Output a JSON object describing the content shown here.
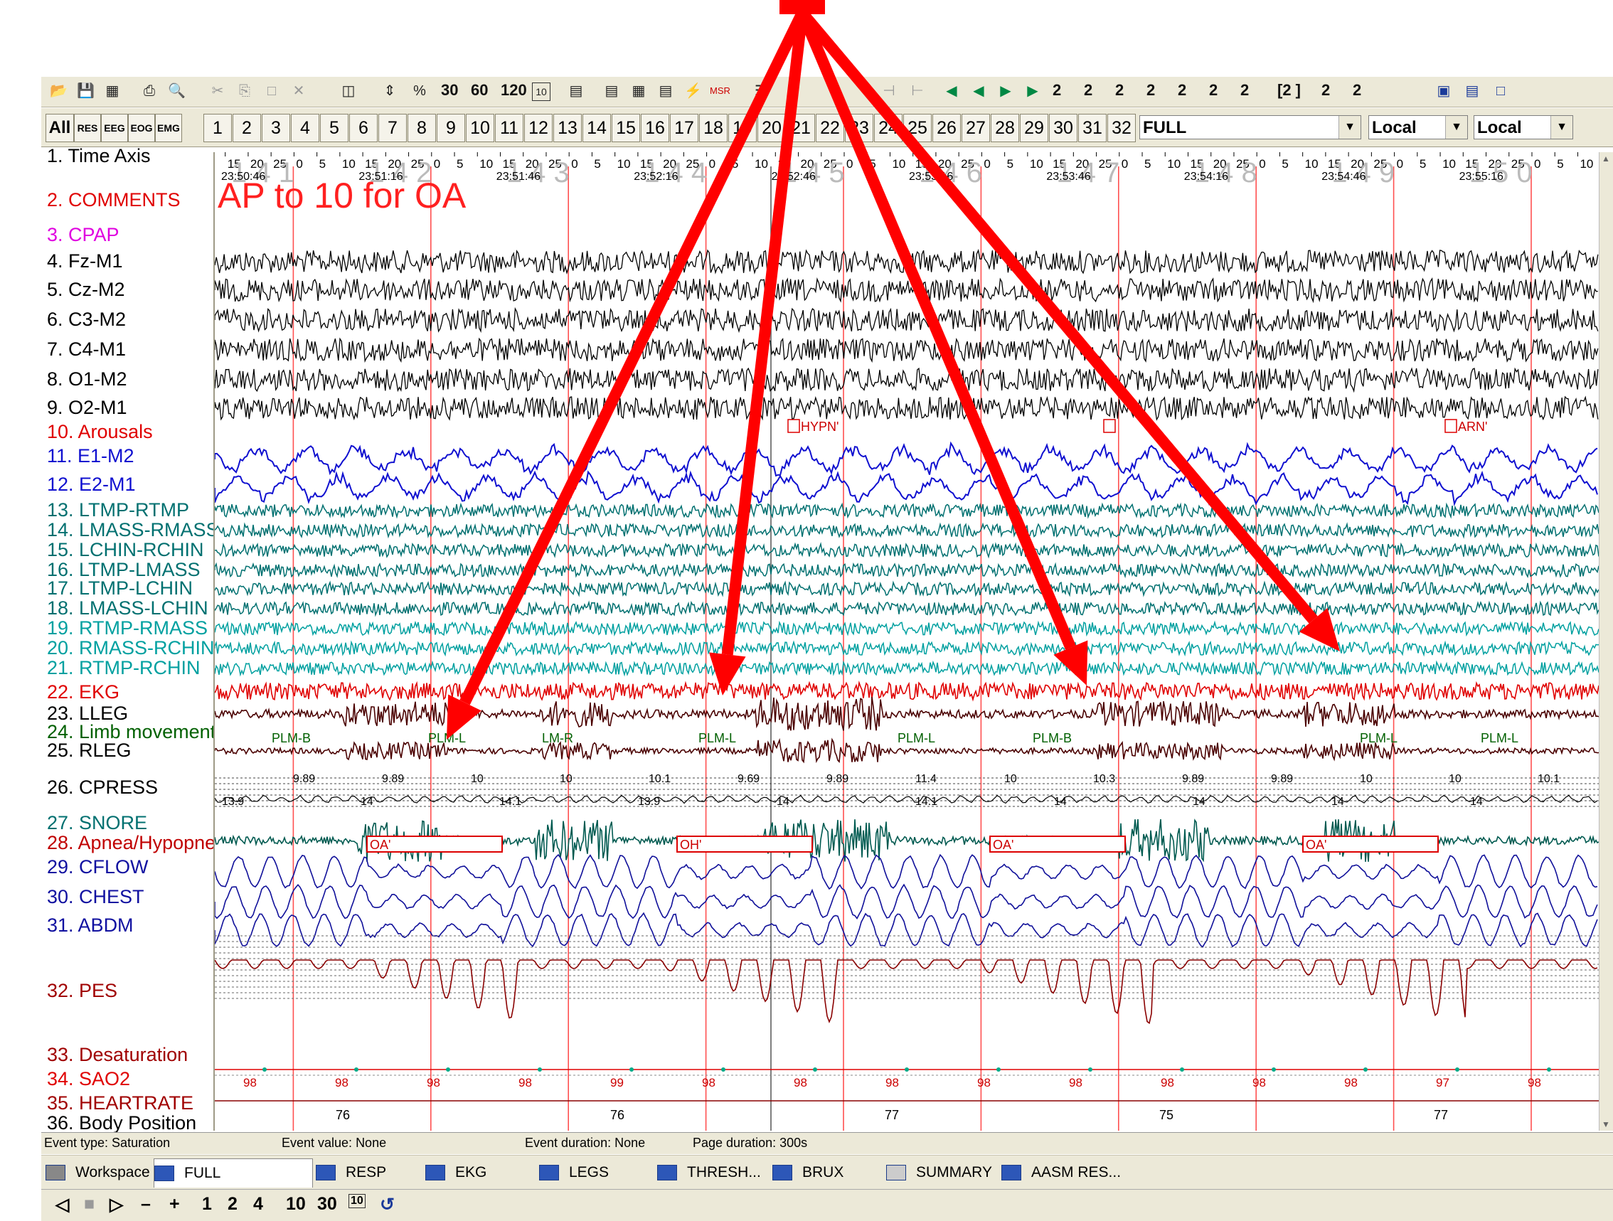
{
  "overlay_text": "AP to 10 for OA",
  "toolbar": {
    "zoom_buttons": [
      "30",
      "60",
      "120"
    ],
    "page_buttons": [
      "2",
      "2",
      "2",
      "2",
      "2",
      "2",
      "2",
      "[2 ]",
      "2",
      "2"
    ]
  },
  "channel_bar": {
    "groups": [
      "All",
      "RES",
      "EEG",
      "EOG",
      "EMG"
    ],
    "numbers": [
      "1",
      "2",
      "3",
      "4",
      "5",
      "6",
      "7",
      "8",
      "9",
      "10",
      "11",
      "12",
      "13",
      "14",
      "15",
      "16",
      "17",
      "18",
      "19",
      "20",
      "21",
      "22",
      "23",
      "24",
      "25",
      "26",
      "27",
      "28",
      "29",
      "30",
      "31",
      "32"
    ],
    "montage_value": "FULL",
    "time_ref_1": "Local",
    "time_ref_2": "Local"
  },
  "channels": [
    {
      "label": "1. Time Axis",
      "color": "#000000"
    },
    {
      "label": "2. COMMENTS",
      "color": "#e00000"
    },
    {
      "label": "3. CPAP",
      "color": "#e000e0"
    },
    {
      "label": "4. Fz-M1",
      "color": "#000000"
    },
    {
      "label": "5. Cz-M2",
      "color": "#000000"
    },
    {
      "label": "6. C3-M2",
      "color": "#000000"
    },
    {
      "label": "7. C4-M1",
      "color": "#000000"
    },
    {
      "label": "8. O1-M2",
      "color": "#000000"
    },
    {
      "label": "9. O2-M1",
      "color": "#000000"
    },
    {
      "label": "10. Arousals",
      "color": "#e00000"
    },
    {
      "label": "11. E1-M2",
      "color": "#1010d0"
    },
    {
      "label": "12. E2-M1",
      "color": "#1010d0"
    },
    {
      "label": "13. LTMP-RTMP",
      "color": "#007070"
    },
    {
      "label": "14. LMASS-RMASS",
      "color": "#007070"
    },
    {
      "label": "15. LCHIN-RCHIN",
      "color": "#007070"
    },
    {
      "label": "16. LTMP-LMASS",
      "color": "#007070"
    },
    {
      "label": "17. LTMP-LCHIN",
      "color": "#007070"
    },
    {
      "label": "18. LMASS-LCHIN",
      "color": "#007070"
    },
    {
      "label": "19. RTMP-RMASS",
      "color": "#00a0a0"
    },
    {
      "label": "20. RMASS-RCHIN",
      "color": "#00a0a0"
    },
    {
      "label": "21. RTMP-RCHIN",
      "color": "#00a0a0"
    },
    {
      "label": "22. EKG",
      "color": "#e00000"
    },
    {
      "label": "23. LLEG",
      "color": "#000000"
    },
    {
      "label": "24. Limb movement",
      "color": "#006000"
    },
    {
      "label": "25. RLEG",
      "color": "#000000"
    },
    {
      "label": "26. CPRESS",
      "color": "#000000"
    },
    {
      "label": "27. SNORE",
      "color": "#007070"
    },
    {
      "label": "28. Apnea/Hypopnea",
      "color": "#c00000"
    },
    {
      "label": "29. CFLOW",
      "color": "#1010a0"
    },
    {
      "label": "30. CHEST",
      "color": "#1010a0"
    },
    {
      "label": "31. ABDM",
      "color": "#1010a0"
    },
    {
      "label": "32. PES",
      "color": "#a00000"
    },
    {
      "label": "33. Desaturation",
      "color": "#a00000"
    },
    {
      "label": "34. SAO2",
      "color": "#e00000"
    },
    {
      "label": "35. HEARTRATE",
      "color": "#a00000"
    },
    {
      "label": "36. Body Position",
      "color": "#000000"
    }
  ],
  "epochs": [
    {
      "number": "1 4 1",
      "time": "23:50:46"
    },
    {
      "number": "1 4 2",
      "time": "23:51:16"
    },
    {
      "number": "1 4 3",
      "time": "23:51:46"
    },
    {
      "number": "1 4 4",
      "time": "23:52:16"
    },
    {
      "number": "1 4 5",
      "time": "23:52:46"
    },
    {
      "number": "1 4 6",
      "time": "23:53:16"
    },
    {
      "number": "1 4 7",
      "time": "23:53:46"
    },
    {
      "number": "1 4 8",
      "time": "23:54:16"
    },
    {
      "number": "1 4 9",
      "time": "23:54:46"
    },
    {
      "number": "1 5 0",
      "time": "23:55:16"
    }
  ],
  "time_ticks": [
    "0",
    "5",
    "10",
    "15",
    "20",
    "25"
  ],
  "events": {
    "arousals": [
      "HYPN'",
      "",
      "ARN'"
    ],
    "apnea": [
      "OA'",
      "OH'",
      "OA'",
      "OA'"
    ],
    "limb": [
      "PLM-B",
      "PLM-L",
      "LM-R",
      "PLM-L",
      "PLM-L",
      "PLM-B",
      "PLM-L",
      "PLM-L"
    ]
  },
  "cpress_values": [
    "9.89",
    "9.89",
    "10",
    "10",
    "10.1",
    "9.69",
    "9.89",
    "11.4",
    "10",
    "10.3",
    "9.89",
    "9.89",
    "10",
    "10",
    "10.1"
  ],
  "cpress_low": [
    "13.9",
    "14",
    "14.1",
    "13.9",
    "14",
    "14.1",
    "14",
    "14",
    "14",
    "14"
  ],
  "pes_scale": [
    "20",
    "15",
    "10",
    "5",
    "0",
    "-5",
    "-10",
    "-15",
    "-20",
    "-25",
    "-30",
    "-35"
  ],
  "cpress_scale": [
    "25",
    "20",
    "15",
    "10",
    "5",
    "0"
  ],
  "sao2_scale": [
    "100",
    "90",
    "80"
  ],
  "sao2_values": [
    "98",
    "98",
    "98",
    "98",
    "99",
    "98",
    "98",
    "98",
    "98",
    "98",
    "98",
    "98",
    "98",
    "97",
    "98"
  ],
  "heartrate_values": [
    "76",
    "76",
    "77",
    "75",
    "77"
  ],
  "status": {
    "event_type": "Event type: Saturation",
    "event_value": "Event value: None",
    "event_duration": "Event duration: None",
    "page_duration": "Page duration: 300s"
  },
  "tabs": [
    "Workspace",
    "FULL",
    "RESP",
    "EKG",
    "LEGS",
    "THRESH...",
    "BRUX",
    "SUMMARY",
    "AASM RES..."
  ],
  "bottom_controls": [
    "1",
    "2",
    "4",
    "10",
    "30"
  ],
  "colors": {
    "arrow": "#ff0000",
    "eeg": "#000000",
    "eog": "#1010d0",
    "emg": "#007070",
    "leg": "#4a0000",
    "resp": "#10109a",
    "pes": "#8a0000",
    "snore": "#005a50"
  }
}
